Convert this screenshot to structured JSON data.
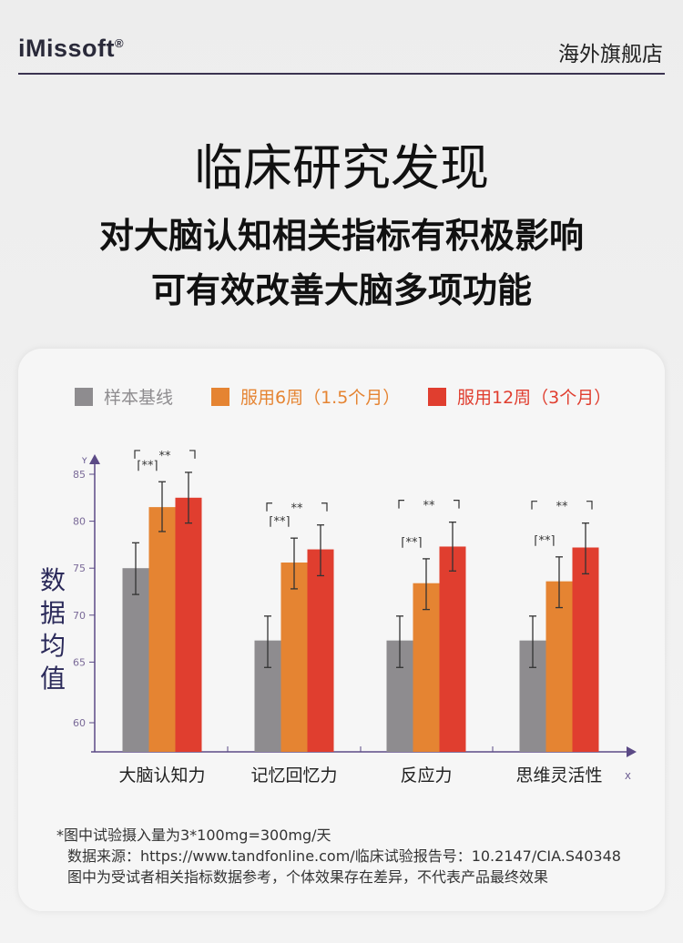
{
  "header": {
    "logo": "iMissoft",
    "logo_mark": "®",
    "store": "海外旗舰店"
  },
  "headline": {
    "title": "临床研究发现",
    "line1": "对大脑认知相关指标有积极影响",
    "line2": "可有效改善大脑多项功能"
  },
  "chart_data": {
    "type": "bar",
    "ylabel": "数据均值",
    "y_axis_letter": "Y",
    "x_axis_letter": "X",
    "yticks": [
      85,
      80,
      75,
      70,
      65,
      60
    ],
    "categories": [
      "大脑认知力",
      "记忆回忆力",
      "反应力",
      "思维灵活性"
    ],
    "series": [
      {
        "name": "样本基线",
        "color": "#8e8c8f",
        "values": [
          75.0,
          67.3,
          67.3,
          67.3
        ],
        "err_low": [
          72.2,
          64.6,
          64.6,
          64.6
        ],
        "err_high": [
          77.7,
          69.9,
          69.9,
          69.9
        ]
      },
      {
        "name": "服用6周（1.5个月）",
        "color": "#e58432",
        "values": [
          81.5,
          75.6,
          73.4,
          73.6
        ],
        "err_low": [
          78.9,
          72.8,
          70.6,
          70.8
        ],
        "err_high": [
          84.2,
          78.2,
          76.0,
          76.2
        ]
      },
      {
        "name": "服用12周（3个月）",
        "color": "#e03e2f",
        "values": [
          82.5,
          77.0,
          77.3,
          77.2
        ],
        "err_low": [
          79.8,
          74.2,
          74.7,
          74.4
        ],
        "err_high": [
          85.2,
          79.6,
          79.9,
          79.8
        ]
      }
    ],
    "significance": {
      "short": "⌈**⌉",
      "long": "**"
    }
  },
  "footnote": [
    "*图中试验摄入量为3*100mg=300mg/天",
    "数据来源：https://www.tandfonline.com/临床试验报告号：10.2147/CIA.S40348",
    "图中为受试者相关指标数据参考，个体效果存在差异，不代表产品最终效果"
  ]
}
